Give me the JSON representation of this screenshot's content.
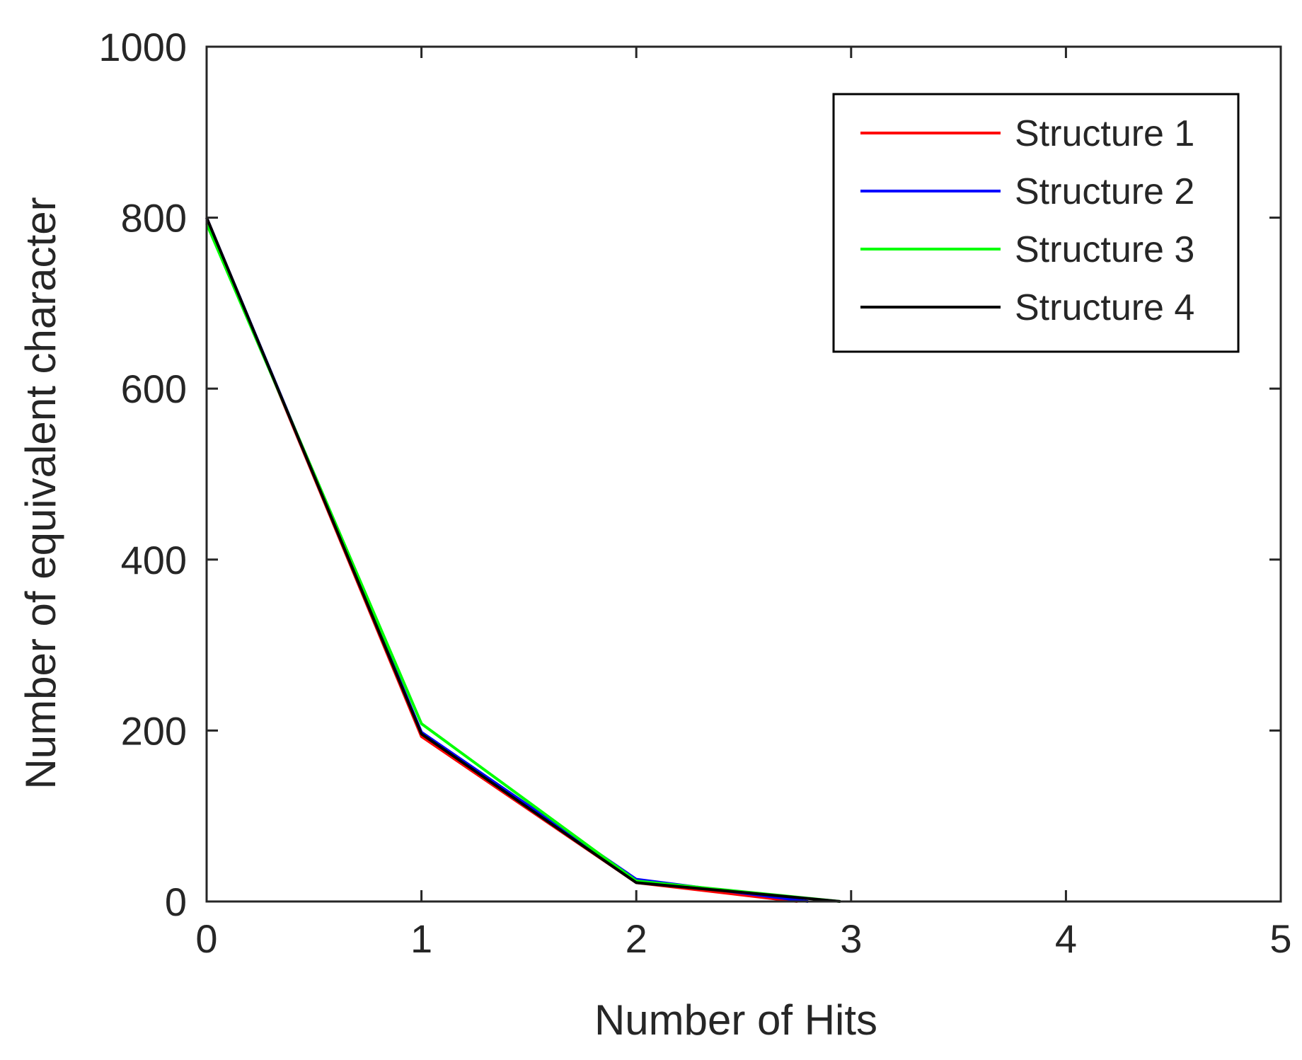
{
  "chart_data": {
    "type": "line",
    "title": "",
    "xlabel": "Number of Hits",
    "ylabel": "Number of equivalent character",
    "xlim": [
      0,
      5
    ],
    "ylim": [
      0,
      1000
    ],
    "xticks": [
      0,
      1,
      2,
      3,
      4,
      5
    ],
    "yticks": [
      0,
      200,
      400,
      600,
      800,
      1000
    ],
    "xtick_labels": [
      "0",
      "1",
      "2",
      "3",
      "4",
      "5"
    ],
    "ytick_labels": [
      "0",
      "200",
      "400",
      "600",
      "800",
      "1000"
    ],
    "grid": false,
    "legend_position": "top-right",
    "series": [
      {
        "name": "Structure 1",
        "color": "#ff0000",
        "x": [
          0,
          1,
          2,
          2.75
        ],
        "y": [
          800,
          193,
          22,
          0
        ]
      },
      {
        "name": "Structure 2",
        "color": "#0000ff",
        "x": [
          0,
          1,
          2,
          2.8
        ],
        "y": [
          800,
          198,
          26,
          0
        ]
      },
      {
        "name": "Structure 3",
        "color": "#00ff00",
        "x": [
          0,
          1,
          2,
          2.95
        ],
        "y": [
          793,
          208,
          24,
          0
        ]
      },
      {
        "name": "Structure 4",
        "color": "#000000",
        "x": [
          0,
          1,
          2,
          2.95
        ],
        "y": [
          800,
          196,
          22,
          0
        ]
      }
    ]
  }
}
